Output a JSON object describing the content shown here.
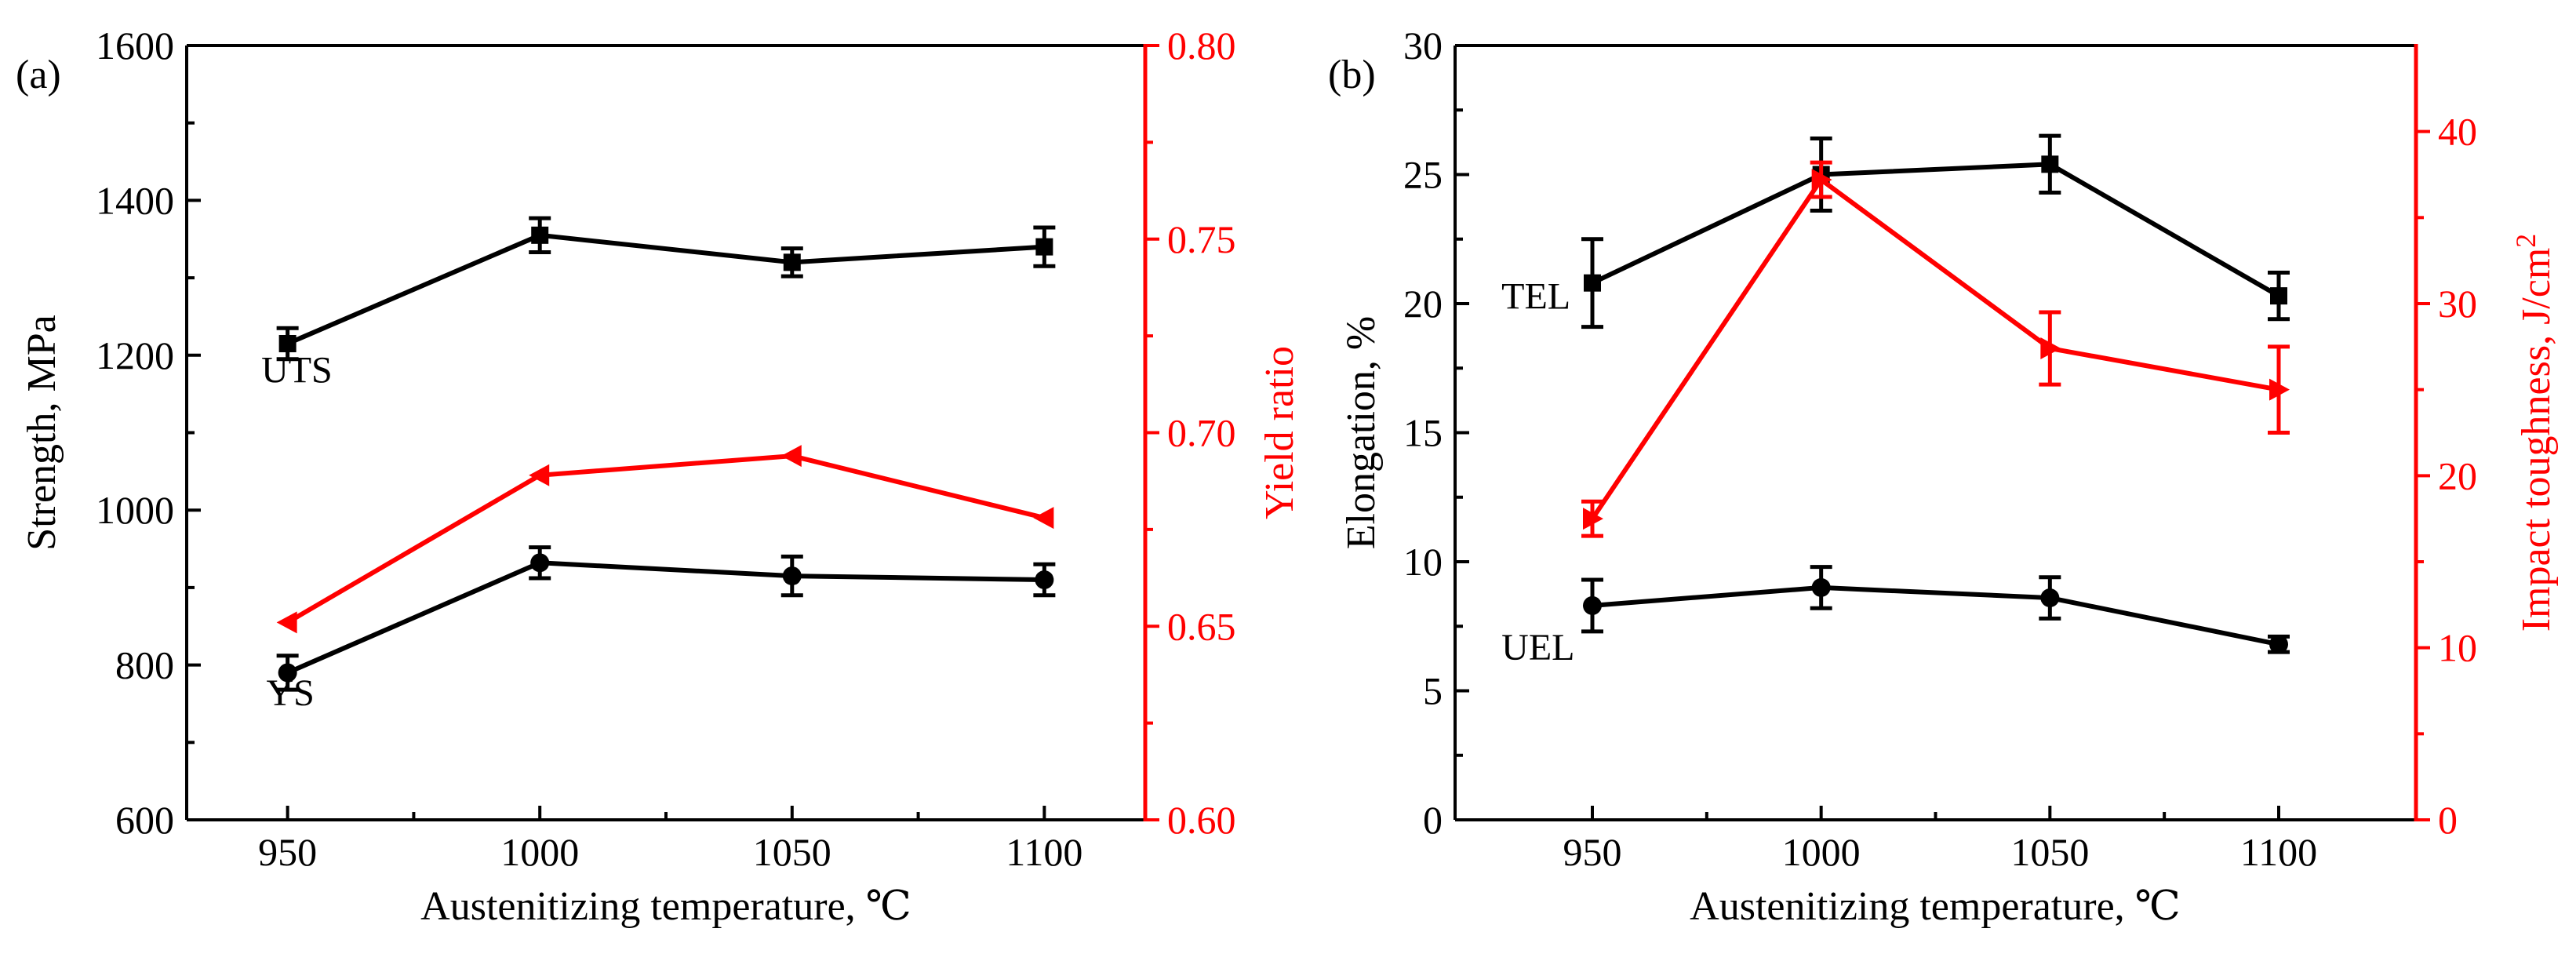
{
  "figure": {
    "panels": [
      "a",
      "b"
    ]
  },
  "colors": {
    "black": "#000000",
    "red": "#ff0000"
  },
  "chart_data": [
    {
      "type": "line",
      "panel_label": "(a)",
      "xlabel": "Austenitizing temperature, ℃",
      "ylabel": "Strength, MPa",
      "y2label": "Yield ratio",
      "xlim": [
        930,
        1120
      ],
      "ylim": [
        600,
        1600
      ],
      "y2lim": [
        0.6,
        0.8
      ],
      "xticks": [
        950,
        1000,
        1050,
        1100
      ],
      "xtick_labels": [
        "950",
        "1000",
        "1050",
        "1100"
      ],
      "yticks": [
        600,
        800,
        1000,
        1200,
        1400,
        1600
      ],
      "ytick_labels": [
        "600",
        "800",
        "1000",
        "1200",
        "1400",
        "1600"
      ],
      "y2ticks": [
        0.6,
        0.65,
        0.7,
        0.75,
        0.8
      ],
      "y2tick_labels": [
        "0.60",
        "0.65",
        "0.70",
        "0.75",
        "0.80"
      ],
      "series": [
        {
          "name": "UTS",
          "axis": "left",
          "marker": "square",
          "color": "#000000",
          "x": [
            950,
            1000,
            1050,
            1100
          ],
          "values": [
            1215,
            1355,
            1320,
            1340
          ],
          "errors": [
            20,
            22,
            18,
            25
          ]
        },
        {
          "name": "YS",
          "axis": "left",
          "marker": "circle",
          "color": "#000000",
          "x": [
            950,
            1000,
            1050,
            1100
          ],
          "values": [
            790,
            932,
            915,
            910
          ],
          "errors": [
            22,
            20,
            25,
            20
          ]
        },
        {
          "name": "Yield ratio",
          "axis": "right",
          "marker": "triangle-left",
          "color": "#ff0000",
          "x": [
            950,
            1000,
            1050,
            1100
          ],
          "values": [
            0.651,
            0.689,
            0.694,
            0.678
          ],
          "errors": [
            0,
            0,
            0,
            0
          ]
        }
      ],
      "annotations": [
        {
          "text": "UTS",
          "x": 951,
          "y": 1165
        },
        {
          "text": "YS",
          "x": 952,
          "y": 748
        }
      ]
    },
    {
      "type": "line",
      "panel_label": "(b)",
      "xlabel": "Austenitizing temperature, ℃",
      "ylabel": "Elongation, %",
      "y2label": "Impact toughness, J/cm",
      "y2label_sup": "2",
      "xlim": [
        920,
        1130
      ],
      "ylim": [
        0,
        30
      ],
      "y2lim": [
        0,
        45
      ],
      "xticks": [
        950,
        1000,
        1050,
        1100
      ],
      "xtick_labels": [
        "950",
        "1000",
        "1050",
        "1100"
      ],
      "yticks": [
        0,
        5,
        10,
        15,
        20,
        25,
        30
      ],
      "ytick_labels": [
        "0",
        "5",
        "10",
        "15",
        "20",
        "25",
        "30"
      ],
      "y2ticks": [
        0,
        10,
        20,
        30,
        40
      ],
      "y2tick_labels": [
        "0",
        "10",
        "20",
        "30",
        "40"
      ],
      "series": [
        {
          "name": "TEL",
          "axis": "left",
          "marker": "square",
          "color": "#000000",
          "x": [
            950,
            1000,
            1050,
            1100
          ],
          "values": [
            20.8,
            25.0,
            25.4,
            20.3
          ],
          "errors": [
            1.7,
            1.4,
            1.1,
            0.9
          ]
        },
        {
          "name": "UEL",
          "axis": "left",
          "marker": "circle",
          "color": "#000000",
          "x": [
            950,
            1000,
            1050,
            1100
          ],
          "values": [
            8.3,
            9.0,
            8.6,
            6.8
          ],
          "errors": [
            1.0,
            0.8,
            0.8,
            0.3
          ]
        },
        {
          "name": "Impact toughness",
          "axis": "right",
          "marker": "triangle-right",
          "color": "#ff0000",
          "x": [
            950,
            1000,
            1050,
            1100
          ],
          "values": [
            17.5,
            37.2,
            27.4,
            25.0
          ],
          "errors": [
            1.0,
            1.0,
            2.1,
            2.5
          ]
        }
      ],
      "annotations": [
        {
          "text": "TEL",
          "x": 937,
          "y": 19.8
        },
        {
          "text": "UEL",
          "x": 937,
          "y": 6.2
        }
      ]
    }
  ]
}
